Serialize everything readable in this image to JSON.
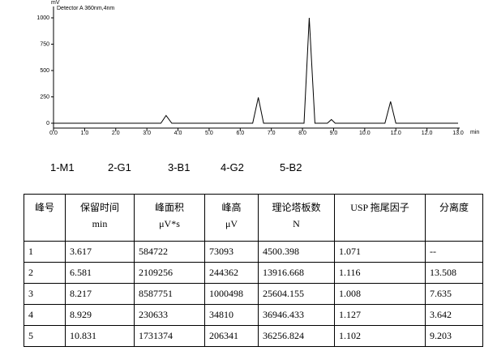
{
  "chart_data": {
    "type": "line",
    "y_label": "mV",
    "x_label": "min",
    "detector": "Detector A 360nm,4nm",
    "x": [
      0,
      3.45,
      3.617,
      3.8,
      6.4,
      6.581,
      6.75,
      8.05,
      8.217,
      8.4,
      8.8,
      8.929,
      9.05,
      10.65,
      10.831,
      11.0,
      13.0
    ],
    "series": [
      {
        "name": "Detector A",
        "color": "#000000",
        "values": [
          0,
          0,
          73,
          0,
          0,
          244,
          0,
          0,
          1000,
          0,
          0,
          35,
          0,
          0,
          206,
          0,
          0
        ]
      }
    ],
    "xlim": [
      0,
      13
    ],
    "ylim": [
      0,
      1000
    ],
    "xticks": [
      {
        "value": 0,
        "label": "0.0"
      },
      {
        "value": 1,
        "label": "1.0"
      },
      {
        "value": 2,
        "label": "2.0"
      },
      {
        "value": 3,
        "label": "3.0"
      },
      {
        "value": 4,
        "label": "4.0"
      },
      {
        "value": 5,
        "label": "5.0"
      },
      {
        "value": 6,
        "label": "6.0"
      },
      {
        "value": 7,
        "label": "7.0"
      },
      {
        "value": 8,
        "label": "8.0"
      },
      {
        "value": 9,
        "label": "9.0"
      },
      {
        "value": 10,
        "label": "10.0"
      },
      {
        "value": 11,
        "label": "11.0"
      },
      {
        "value": 12,
        "label": "12.0"
      },
      {
        "value": 13,
        "label": "13.0"
      }
    ],
    "yticks": [
      0,
      250,
      500,
      750,
      1000
    ]
  },
  "peak_names": [
    "1-M1",
    "2-G1",
    "3-B1",
    "4-G2",
    "5-B2"
  ],
  "table": {
    "header": [
      [
        "峰号"
      ],
      [
        "保留时间",
        "min"
      ],
      [
        "峰面积",
        "μV*s"
      ],
      [
        "峰高",
        "μV"
      ],
      [
        "理论塔板数",
        "N"
      ],
      [
        "USP 拖尾因子"
      ],
      [
        "分离度"
      ]
    ],
    "rows": [
      [
        "1",
        "3.617",
        "584722",
        "73093",
        "4500.398",
        "1.071",
        "--"
      ],
      [
        "2",
        "6.581",
        "2109256",
        "244362",
        "13916.668",
        "1.116",
        "13.508"
      ],
      [
        "3",
        "8.217",
        "8587751",
        "1000498",
        "25604.155",
        "1.008",
        "7.635"
      ],
      [
        "4",
        "8.929",
        "230633",
        "34810",
        "36946.433",
        "1.127",
        "3.642"
      ],
      [
        "5",
        "10.831",
        "1731374",
        "206341",
        "36256.824",
        "1.102",
        "9.203"
      ]
    ]
  }
}
